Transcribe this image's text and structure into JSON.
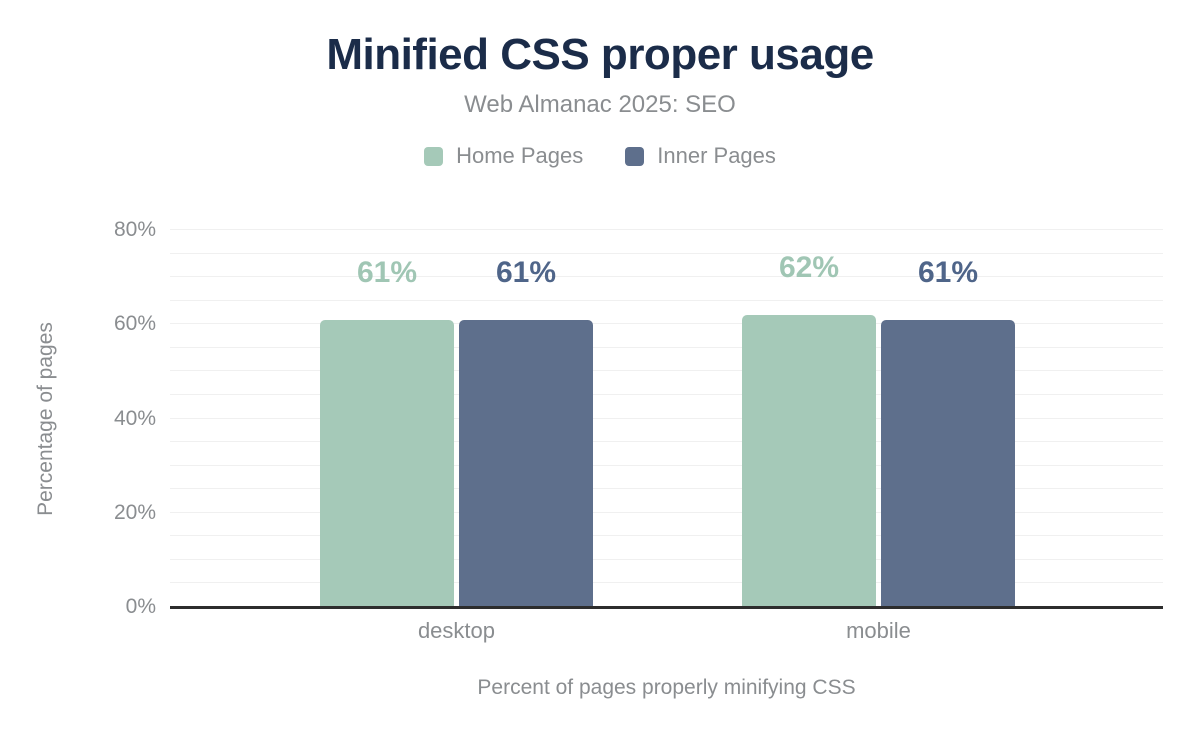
{
  "header": {
    "title": "Minified CSS proper usage",
    "subtitle": "Web Almanac 2025: SEO"
  },
  "legend": {
    "items": [
      {
        "label": "Home Pages",
        "color": "#a5c9b8"
      },
      {
        "label": "Inner Pages",
        "color": "#5e6f8c"
      }
    ]
  },
  "chart_data": {
    "type": "bar",
    "title": "Minified CSS proper usage",
    "subtitle": "Web Almanac 2025: SEO",
    "categories": [
      "desktop",
      "mobile"
    ],
    "series": [
      {
        "name": "Home Pages",
        "color": "#a5c9b8",
        "label_color": "#a0c6b4",
        "values": [
          61,
          62
        ],
        "labels": [
          "61%",
          "62%"
        ]
      },
      {
        "name": "Inner Pages",
        "color": "#5e6f8c",
        "label_color": "#4f6589",
        "values": [
          61,
          61
        ],
        "labels": [
          "61%",
          "61%"
        ]
      }
    ],
    "ylabel": "Percentage of pages",
    "xlabel": "Percent of pages properly minifying CSS",
    "ylim": [
      0,
      80
    ],
    "yticks": [
      0,
      20,
      40,
      60,
      80
    ],
    "ytick_labels": [
      "0%",
      "20%",
      "40%",
      "60%",
      "80%"
    ],
    "grid": true,
    "grid_step": 5,
    "legend_position": "top"
  }
}
